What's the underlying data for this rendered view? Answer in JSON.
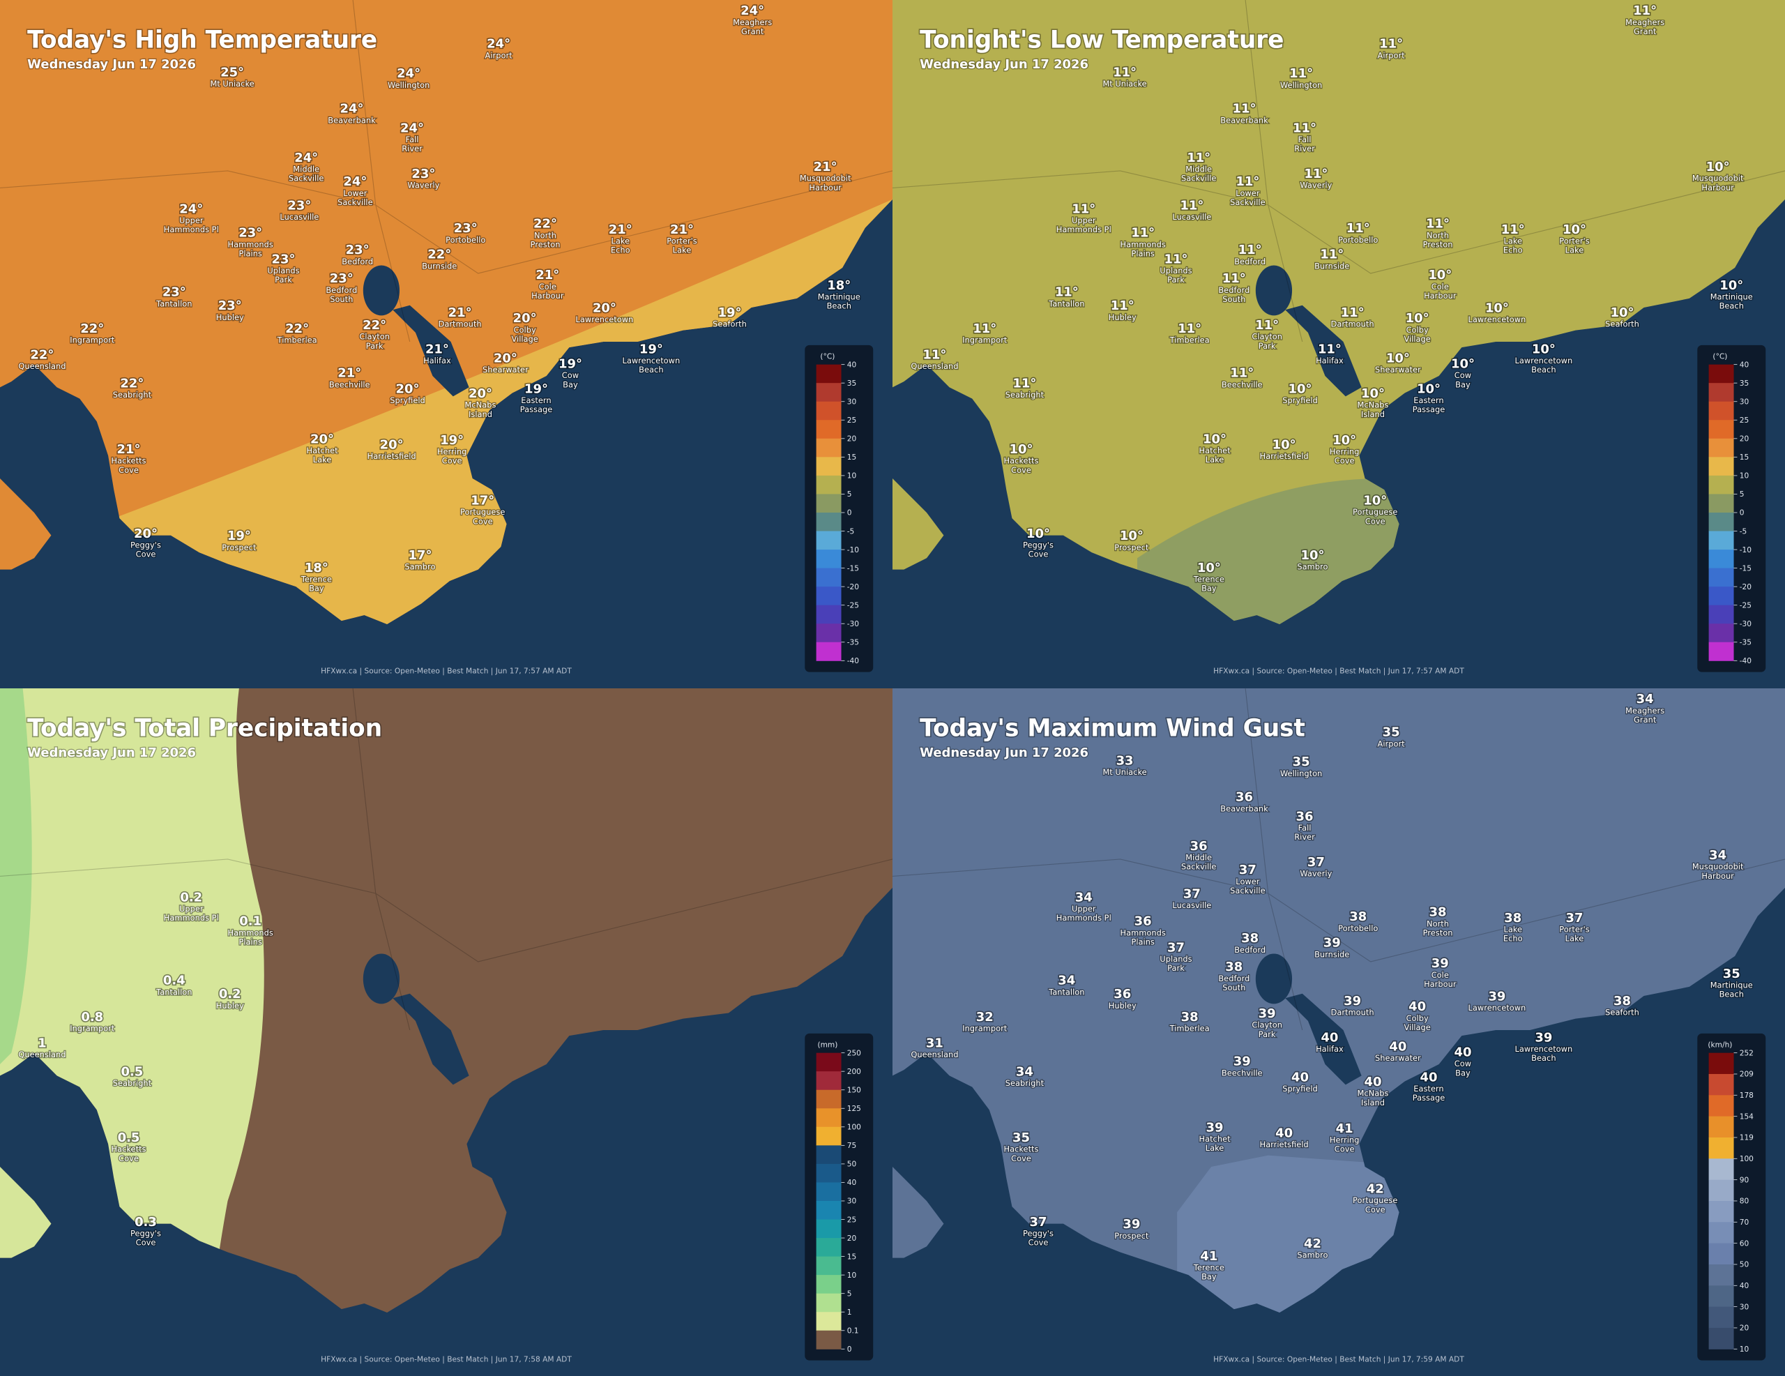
{
  "places": [
    [
      "Meaghers",
      "Grant"
    ],
    [
      "Airport"
    ],
    [
      "Mt Uniacke"
    ],
    [
      "Wellington"
    ],
    [
      "Beaverbank"
    ],
    [
      "Fall",
      "River"
    ],
    [
      "Middle",
      "Sackville"
    ],
    [
      "Lower",
      "Sackville"
    ],
    [
      "Waverly"
    ],
    [
      "Musquodobit",
      "Harbour"
    ],
    [
      "Upper",
      "Hammonds Pl"
    ],
    [
      "Lucasville"
    ],
    [
      "Hammonds",
      "Plains"
    ],
    [
      "Portobello"
    ],
    [
      "North",
      "Preston"
    ],
    [
      "Lake",
      "Echo"
    ],
    [
      "Porter's",
      "Lake"
    ],
    [
      "Uplands",
      "Park"
    ],
    [
      "Bedford"
    ],
    [
      "Burnside"
    ],
    [
      "Bedford",
      "South"
    ],
    [
      "Cole",
      "Harbour"
    ],
    [
      "Martinique",
      "Beach"
    ],
    [
      "Tantallon"
    ],
    [
      "Hubley"
    ],
    [
      "Dartmouth"
    ],
    [
      "Colby",
      "Village"
    ],
    [
      "Lawrencetown"
    ],
    [
      "Seaforth"
    ],
    [
      "Ingramport"
    ],
    [
      "Timberlea"
    ],
    [
      "Clayton",
      "Park"
    ],
    [
      "Lawrencetown",
      "Beach"
    ],
    [
      "Queensland"
    ],
    [
      "Halifax"
    ],
    [
      "Shearwater"
    ],
    [
      "Cow",
      "Bay"
    ],
    [
      "Beechville"
    ],
    [
      "Seabright"
    ],
    [
      "Spryfield"
    ],
    [
      "McNabs",
      "Island"
    ],
    [
      "Eastern",
      "Passage"
    ],
    [
      "Hatchet",
      "Lake"
    ],
    [
      "Harrietsfield"
    ],
    [
      "Herring",
      "Cove"
    ],
    [
      "Hacketts",
      "Cove"
    ],
    [
      "Portuguese",
      "Cove"
    ],
    [
      "Peggy's",
      "Cove"
    ],
    [
      "Prospect"
    ],
    [
      "Sambro"
    ],
    [
      "Terence",
      "Bay"
    ]
  ],
  "panels": [
    {
      "title": "Today's High Temperature",
      "subtitle": "Wednesday Jun 17 2026",
      "footer": "HFXwx.ca | Source: Open-Meteo | Best Match | Jun 17, 7:57 AM ADT",
      "labels": [
        "24°",
        "24°",
        "25°",
        "24°",
        "24°",
        "24°",
        "24°",
        "24°",
        "23°",
        "21°",
        "24°",
        "23°",
        "23°",
        "23°",
        "22°",
        "21°",
        "21°",
        "23°",
        "23°",
        "22°",
        "23°",
        "21°",
        "18°",
        "23°",
        "23°",
        "21°",
        "20°",
        "20°",
        "19°",
        "22°",
        "22°",
        "22°",
        "19°",
        "22°",
        "21°",
        "20°",
        "19°",
        "21°",
        "22°",
        "20°",
        "20°",
        "19°",
        "20°",
        "20°",
        "19°",
        "21°",
        "17°",
        "20°",
        "19°",
        "17°",
        "18°"
      ],
      "legend": {
        "unit": "(°C)",
        "ticks": [
          40,
          35,
          30,
          25,
          20,
          15,
          10,
          5,
          0,
          -5,
          -10,
          -15,
          -20,
          -25,
          -30,
          -35,
          -40
        ],
        "colors": [
          "#7a0c0c",
          "#b03a2e",
          "#d0522a",
          "#e06a28",
          "#e8903a",
          "#e8b84a",
          "#b5b050",
          "#8a9a62",
          "#5a8a88",
          "#5aaad8",
          "#3a8ad8",
          "#3a70d0",
          "#3a58c8",
          "#4a40b8",
          "#6a30a8",
          "#c030d0"
        ]
      }
    },
    {
      "title": "Tonight's Low Temperature",
      "subtitle": "Wednesday Jun 17 2026",
      "footer": "HFXwx.ca | Source: Open-Meteo | Best Match | Jun 17, 7:57 AM ADT",
      "labels": [
        "11°",
        "11°",
        "11°",
        "11°",
        "11°",
        "11°",
        "11°",
        "11°",
        "11°",
        "10°",
        "11°",
        "11°",
        "11°",
        "11°",
        "11°",
        "11°",
        "10°",
        "11°",
        "11°",
        "11°",
        "11°",
        "10°",
        "10°",
        "11°",
        "11°",
        "11°",
        "10°",
        "10°",
        "10°",
        "11°",
        "11°",
        "11°",
        "10°",
        "11°",
        "11°",
        "10°",
        "10°",
        "11°",
        "11°",
        "10°",
        "10°",
        "10°",
        "10°",
        "10°",
        "10°",
        "10°",
        "10°",
        "10°",
        "10°",
        "10°",
        "10°"
      ],
      "legend": {
        "unit": "(°C)",
        "ticks": [
          40,
          35,
          30,
          25,
          20,
          15,
          10,
          5,
          0,
          -5,
          -10,
          -15,
          -20,
          -25,
          -30,
          -35,
          -40
        ],
        "colors": [
          "#7a0c0c",
          "#b03a2e",
          "#d0522a",
          "#e06a28",
          "#e8903a",
          "#e8b84a",
          "#b5b050",
          "#8a9a62",
          "#5a8a88",
          "#5aaad8",
          "#3a8ad8",
          "#3a70d0",
          "#3a58c8",
          "#4a40b8",
          "#6a30a8",
          "#c030d0"
        ]
      }
    },
    {
      "title": "Today's Total Precipitation",
      "subtitle": "Wednesday Jun 17 2026",
      "footer": "HFXwx.ca | Source: Open-Meteo | Best Match | Jun 17, 7:58 AM ADT",
      "labels": [
        null,
        null,
        null,
        null,
        null,
        null,
        null,
        null,
        null,
        null,
        "0.2",
        null,
        "0.1",
        null,
        null,
        null,
        null,
        null,
        null,
        null,
        null,
        null,
        null,
        "0.4",
        "0.2",
        null,
        null,
        null,
        null,
        "0.8",
        null,
        null,
        null,
        "1",
        null,
        null,
        null,
        null,
        "0.5",
        null,
        null,
        null,
        null,
        null,
        null,
        "0.5",
        null,
        "0.3",
        null,
        null,
        null
      ],
      "legend": {
        "unit": "(mm)",
        "ticks": [
          250,
          200,
          150,
          125,
          100,
          75,
          50,
          40,
          30,
          25,
          20,
          15,
          10,
          5,
          1,
          0.1,
          0
        ],
        "colors": [
          "#7a0a1a",
          "#a02a3a",
          "#c86a2a",
          "#e8922a",
          "#f0b030",
          "#1a4a75",
          "#1a5a8a",
          "#1a6fa0",
          "#1a85b0",
          "#1a9aa8",
          "#2aaa98",
          "#4abb90",
          "#7ad08a",
          "#b0e090",
          "#dce89a",
          "#7a5a45"
        ]
      }
    },
    {
      "title": "Today's Maximum Wind Gust",
      "subtitle": "Wednesday Jun 17 2026",
      "footer": "HFXwx.ca | Source: Open-Meteo | Best Match | Jun 17, 7:59 AM ADT",
      "labels": [
        "34",
        "35",
        "33",
        "35",
        "36",
        "36",
        "36",
        "37",
        "37",
        "34",
        "34",
        "37",
        "36",
        "38",
        "38",
        "38",
        "37",
        "37",
        "38",
        "39",
        "38",
        "39",
        "35",
        "34",
        "36",
        "39",
        "40",
        "39",
        "38",
        "32",
        "38",
        "39",
        "39",
        "31",
        "40",
        "40",
        "40",
        "39",
        "34",
        "40",
        "40",
        "40",
        "39",
        "40",
        "41",
        "35",
        "42",
        "37",
        "39",
        "42",
        "41"
      ],
      "legend": {
        "unit": "(km/h)",
        "ticks": [
          252,
          209,
          178,
          154,
          119,
          100,
          90,
          80,
          70,
          60,
          50,
          40,
          30,
          20,
          10
        ],
        "colors": [
          "#7a0c0c",
          "#c84a30",
          "#e06a28",
          "#e8902a",
          "#f0b030",
          "#a8b8d0",
          "#98aac8",
          "#889cc0",
          "#788eb6",
          "#6a80ac",
          "#5d7396",
          "#4e6686",
          "#42587a",
          "#384c6c"
        ]
      }
    }
  ]
}
